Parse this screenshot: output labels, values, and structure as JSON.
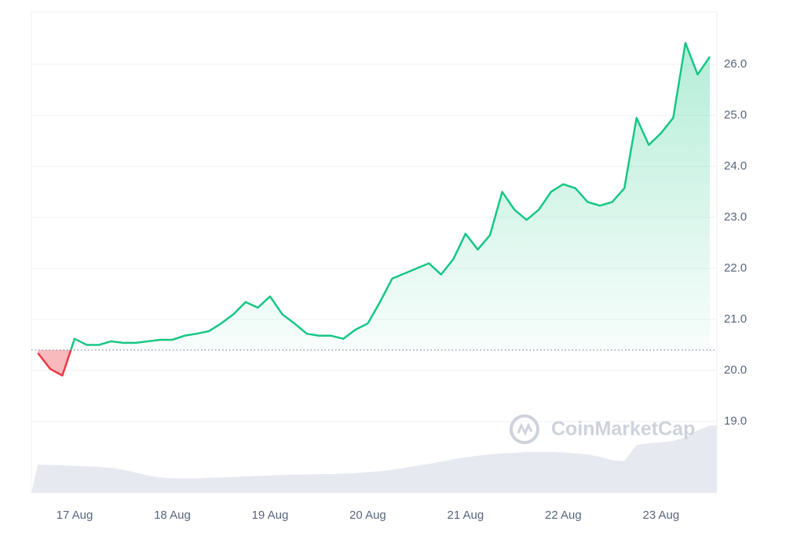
{
  "chart_data": {
    "type": "line",
    "watermark": "CoinMarketCap",
    "categories": [
      null,
      null,
      null,
      "17 Aug",
      null,
      null,
      null,
      null,
      null,
      null,
      null,
      "18 Aug",
      null,
      null,
      null,
      null,
      null,
      null,
      null,
      "19 Aug",
      null,
      null,
      null,
      null,
      null,
      null,
      null,
      "20 Aug",
      null,
      null,
      null,
      null,
      null,
      null,
      null,
      "21 Aug",
      null,
      null,
      null,
      null,
      null,
      null,
      null,
      "22 Aug",
      null,
      null,
      null,
      null,
      null,
      null,
      null,
      "23 Aug",
      null,
      null,
      null,
      null
    ],
    "series": [
      {
        "color": "#16c784",
        "below_color": "#ea3943",
        "values": [
          20.34,
          20.03,
          19.9,
          20.62,
          20.5,
          20.5,
          20.57,
          20.54,
          20.54,
          20.57,
          20.6,
          20.6,
          20.68,
          20.72,
          20.77,
          20.92,
          21.1,
          21.34,
          21.23,
          21.45,
          21.1,
          20.92,
          20.72,
          20.68,
          20.68,
          20.62,
          20.8,
          20.92,
          21.34,
          21.8,
          21.9,
          22.0,
          22.1,
          21.88,
          22.18,
          22.68,
          22.37,
          22.65,
          23.5,
          23.15,
          22.95,
          23.15,
          23.5,
          23.65,
          23.57,
          23.3,
          23.23,
          23.3,
          23.57,
          24.95,
          24.42,
          24.65,
          24.95,
          26.42,
          25.8,
          26.15
        ]
      }
    ],
    "reference_line": 20.4,
    "volume": {
      "color": "#e6e9f0",
      "values": [
        0.59,
        0.58,
        0.57,
        0.56,
        0.55,
        0.54,
        0.52,
        0.48,
        0.42,
        0.36,
        0.32,
        0.3,
        0.3,
        0.3,
        0.31,
        0.32,
        0.33,
        0.34,
        0.35,
        0.36,
        0.37,
        0.38,
        0.38,
        0.39,
        0.39,
        0.4,
        0.41,
        0.43,
        0.45,
        0.48,
        0.52,
        0.56,
        0.6,
        0.65,
        0.7,
        0.74,
        0.77,
        0.8,
        0.82,
        0.83,
        0.85,
        0.85,
        0.85,
        0.84,
        0.82,
        0.8,
        0.75,
        0.68,
        0.66,
        1.0,
        1.03,
        1.05,
        1.08,
        1.15,
        1.3,
        1.4
      ]
    },
    "y2lim": [
      0,
      10
    ],
    "ylim": [
      17.6,
      27.03
    ],
    "yticks": [
      {
        "value": 19,
        "label": "19.0"
      },
      {
        "value": 20,
        "label": "20.0"
      },
      {
        "value": 21,
        "label": "21.0"
      },
      {
        "value": 22,
        "label": "22.0"
      },
      {
        "value": 23,
        "label": "23.0"
      },
      {
        "value": 24,
        "label": "24.0"
      },
      {
        "value": 25,
        "label": "25.0"
      },
      {
        "value": 26,
        "label": "26.0"
      }
    ],
    "grid": true
  }
}
